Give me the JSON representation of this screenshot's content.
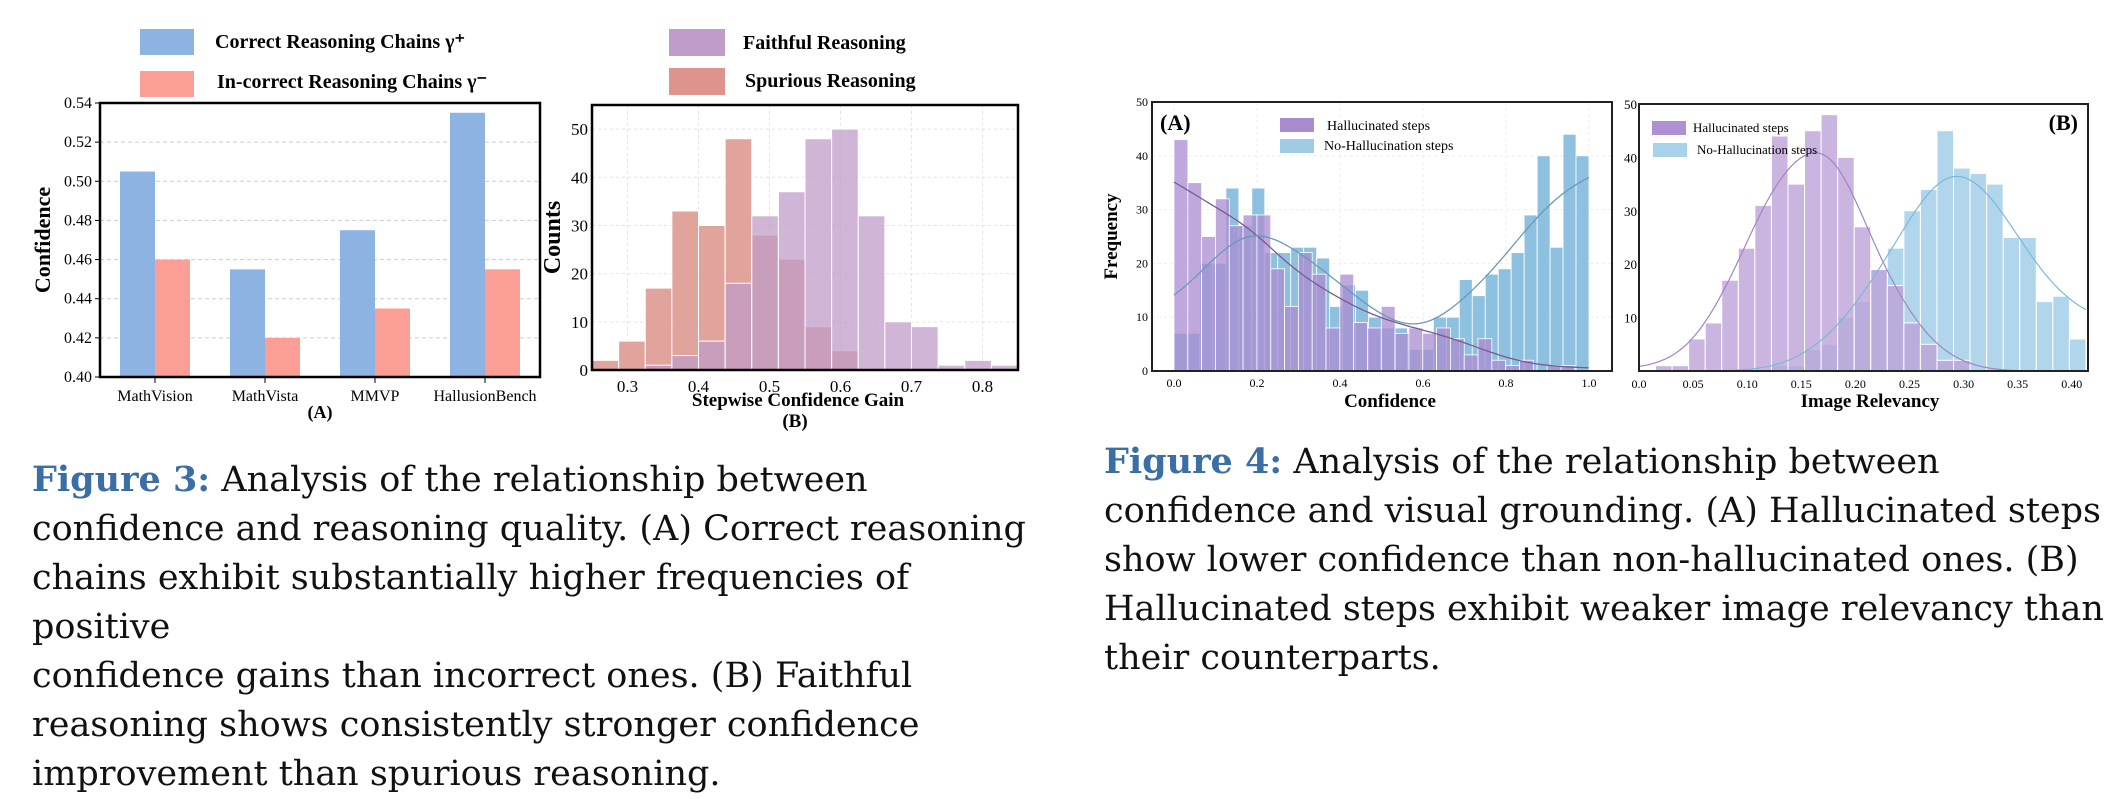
{
  "colors": {
    "correct": "#8db3e2",
    "incorrect": "#fa9e96",
    "faithful": "#c09cc8",
    "spurious": "#dc948c",
    "halluc": "#a98bd0",
    "halluc_light": "#d9a6dc",
    "nohalluc": "#7ab6da",
    "nohalluc_b": "#a8d1ea",
    "halluc_b": "#bda3d8",
    "caption_accent": "#3b6ea5"
  },
  "captions": {
    "fig3": {
      "label": "Figure 3:",
      "lines": [
        "Analysis of the relationship between",
        "confidence and reasoning quality. (A) Correct reasoning",
        "chains exhibit substantially higher frequencies of positive",
        "confidence gains than incorrect ones. (B) Faithful",
        "reasoning shows consistently stronger confidence",
        "improvement than spurious reasoning."
      ]
    },
    "fig4": {
      "label": "Figure 4:",
      "lines": [
        "Analysis of the relationship between",
        "confidence and visual grounding. (A) Hallucinated steps",
        "show lower confidence than non-hallucinated ones. (B)",
        "Hallucinated steps exhibit weaker image relevancy than",
        "their counterparts."
      ]
    }
  },
  "chart_data": [
    {
      "id": "fig3a",
      "type": "bar",
      "panel_label": "(A)",
      "title": "",
      "xlabel": "",
      "ylabel": "Confidence",
      "categories": [
        "MathVision",
        "MathVista",
        "MMVP",
        "HallusionBench"
      ],
      "series": [
        {
          "name": "Correct Reasoning Chains γ⁺",
          "values": [
            0.505,
            0.455,
            0.475,
            0.535
          ]
        },
        {
          "name": "In-correct Reasoning Chains γ⁻",
          "values": [
            0.46,
            0.42,
            0.435,
            0.455
          ]
        }
      ],
      "ylim": [
        0.4,
        0.54
      ],
      "yticks": [
        "0.40",
        "0.42",
        "0.44",
        "0.46",
        "0.48",
        "0.50",
        "0.52",
        "0.54"
      ],
      "grid": "horizontal dashed",
      "legend": "top"
    },
    {
      "id": "fig3b",
      "type": "histogram",
      "panel_label": "(B)",
      "xlabel": "Stepwise Confidence Gain",
      "ylabel": "Counts",
      "bin_start": 0.25,
      "bin_width": 0.0375,
      "series": [
        {
          "name": "Faithful Reasoning",
          "values": [
            0,
            0,
            1,
            3,
            6,
            18,
            32,
            37,
            48,
            50,
            32,
            10,
            9,
            1,
            2,
            1
          ]
        },
        {
          "name": "Spurious Reasoning",
          "values": [
            2,
            6,
            17,
            33,
            30,
            48,
            28,
            23,
            9,
            4,
            0,
            0,
            0,
            0,
            0,
            0
          ]
        }
      ],
      "xlim": [
        0.25,
        0.85
      ],
      "ylim": [
        0,
        55
      ],
      "xticks": [
        "0.3",
        "0.4",
        "0.5",
        "0.6",
        "0.7",
        "0.8"
      ],
      "yticks": [
        "0",
        "10",
        "20",
        "30",
        "40",
        "50"
      ],
      "grid": true,
      "legend": "top"
    },
    {
      "id": "fig4a",
      "type": "histogram",
      "panel_label": "(A)",
      "xlabel": "Confidence",
      "ylabel": "Frequency",
      "bin_start": 0.0,
      "bin_width": 0.0333,
      "series": [
        {
          "name": "Hallucinated steps",
          "values": [
            43,
            35,
            25,
            32,
            27,
            29,
            29,
            19,
            12,
            22,
            18,
            8,
            18,
            9,
            8,
            12,
            7,
            8,
            7,
            8,
            6,
            3,
            6,
            2,
            1,
            2,
            0,
            1,
            1,
            0
          ]
        },
        {
          "name": "No-Hallucination steps",
          "values": [
            7,
            7,
            20,
            20,
            34,
            27,
            34,
            22,
            22,
            23,
            23,
            21,
            12,
            16,
            15,
            10,
            8,
            8,
            4,
            4,
            10,
            10,
            17,
            14,
            18,
            19,
            22,
            29,
            40,
            23,
            44,
            40
          ]
        }
      ],
      "xlim": [
        0.0,
        1.0
      ],
      "ylim": [
        0,
        50
      ],
      "xticks": [
        "0.0",
        "0.2",
        "0.4",
        "0.6",
        "0.8",
        "1.0"
      ],
      "yticks": [
        "0",
        "10",
        "20",
        "30",
        "40",
        "50"
      ],
      "kde": true,
      "grid": true,
      "legend": "top-center"
    },
    {
      "id": "fig4b",
      "type": "histogram",
      "panel_label": "(B)",
      "xlabel": "Image Relevancy",
      "ylabel": "",
      "bin_start": 0.0,
      "bin_width": 0.0153,
      "series": [
        {
          "name": "Hallucinated steps",
          "values": [
            0,
            1,
            1,
            6,
            9,
            17,
            23,
            31,
            44,
            35,
            45,
            48,
            40,
            27,
            19,
            16,
            9,
            5,
            2,
            2,
            0,
            0,
            0,
            0,
            0,
            0,
            0
          ]
        },
        {
          "name": "No-Hallucination steps",
          "values": [
            0,
            0,
            0,
            0,
            0,
            0,
            0,
            0,
            1,
            1,
            4,
            5,
            10,
            13,
            19,
            23,
            30,
            34,
            45,
            38,
            37,
            35,
            25,
            25,
            13,
            14,
            6
          ]
        }
      ],
      "xlim": [
        0.0,
        0.415
      ],
      "ylim": [
        0,
        50
      ],
      "xticks": [
        "0.0",
        "0.05",
        "0.10",
        "0.15",
        "0.20",
        "0.25",
        "0.30",
        "0.35",
        "0.40"
      ],
      "yticks": [
        "10",
        "20",
        "30",
        "40",
        "50"
      ],
      "kde": true,
      "grid": false,
      "legend": "top-left"
    }
  ]
}
